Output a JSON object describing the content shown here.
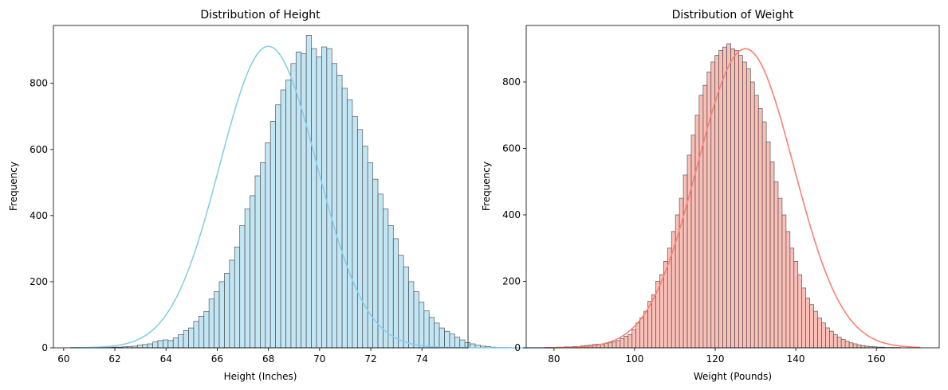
{
  "chart_data": [
    {
      "type": "bar",
      "title": "Distribution of Height",
      "xlabel": "Height (Inches)",
      "ylabel": "Frequency",
      "xlim": [
        59.6,
        75.8
      ],
      "ylim": [
        0,
        975
      ],
      "xticks": [
        60,
        62,
        64,
        66,
        68,
        70,
        72,
        74
      ],
      "yticks": [
        0,
        200,
        400,
        600,
        800
      ],
      "bin_start": 60.28,
      "bin_width": 0.2,
      "values": [
        1,
        0,
        0,
        0,
        0,
        1,
        1,
        1,
        2,
        2,
        3,
        4,
        5,
        8,
        10,
        12,
        18,
        22,
        24,
        22,
        30,
        40,
        52,
        60,
        80,
        95,
        110,
        148,
        170,
        200,
        225,
        265,
        305,
        370,
        420,
        460,
        520,
        560,
        620,
        685,
        735,
        780,
        810,
        860,
        895,
        890,
        945,
        905,
        880,
        910,
        905,
        860,
        825,
        785,
        750,
        700,
        660,
        610,
        560,
        510,
        465,
        420,
        370,
        330,
        280,
        245,
        200,
        170,
        138,
        112,
        92,
        75,
        60,
        50,
        42,
        32,
        24,
        16,
        12,
        8,
        5,
        4,
        2,
        1,
        1,
        1,
        0,
        0,
        0,
        0,
        0,
        0,
        0,
        0
      ],
      "kde": {
        "mean": 68.0,
        "sd": 1.9,
        "peak": 912
      },
      "colors": {
        "bar_fill": "#87ceeb",
        "line": "#87ceeb"
      }
    },
    {
      "type": "bar",
      "title": "Distribution of Weight",
      "xlabel": "Weight (Pounds)",
      "ylabel": "Frequency",
      "xlim": [
        73.1,
        175.6
      ],
      "ylim": [
        0,
        970
      ],
      "xticks": [
        80,
        100,
        120,
        140,
        160
      ],
      "yticks": [
        0,
        200,
        400,
        600,
        800
      ],
      "bin_start": 77.8,
      "bin_width": 0.98,
      "values": [
        1,
        1,
        1,
        2,
        2,
        3,
        3,
        4,
        4,
        6,
        7,
        8,
        10,
        11,
        10,
        13,
        15,
        18,
        22,
        28,
        35,
        40,
        55,
        75,
        90,
        110,
        140,
        160,
        200,
        220,
        260,
        300,
        350,
        400,
        450,
        520,
        580,
        640,
        700,
        760,
        790,
        830,
        860,
        880,
        895,
        905,
        915,
        900,
        895,
        880,
        860,
        840,
        800,
        760,
        720,
        680,
        620,
        560,
        500,
        450,
        400,
        350,
        300,
        260,
        220,
        180,
        150,
        130,
        110,
        90,
        75,
        60,
        50,
        40,
        32,
        25,
        20,
        15,
        12,
        9,
        7,
        5,
        4,
        3,
        2,
        2,
        1,
        1,
        1,
        1,
        0,
        0,
        0,
        0,
        0
      ],
      "kde": {
        "mean": 127.5,
        "sd": 12.0,
        "peak": 900
      },
      "colors": {
        "bar_fill": "#fa8072",
        "line": "#fa8072"
      }
    }
  ]
}
